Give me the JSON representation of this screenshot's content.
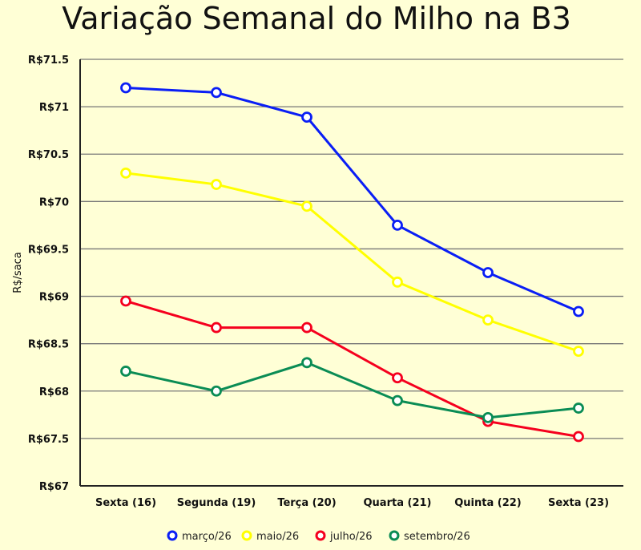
{
  "chart_data": {
    "type": "line",
    "title": "Variação Semanal do Milho na B3",
    "xlabel": "",
    "ylabel": "R$/saca",
    "categories": [
      "Sexta (16)",
      "Segunda (19)",
      "Terça (20)",
      "Quarta (21)",
      "Quinta (22)",
      "Sexta (23)"
    ],
    "ylim": [
      67,
      71.5
    ],
    "yticks": [
      67,
      67.5,
      68,
      68.5,
      69,
      69.5,
      70,
      70.5,
      71,
      71.5
    ],
    "ytick_labels": [
      "R$67",
      "R$67.5",
      "R$68",
      "R$68.5",
      "R$69",
      "R$69.5",
      "R$70",
      "R$70.5",
      "R$71",
      "R$71.5"
    ],
    "grid": "horizontal",
    "legend_position": "bottom",
    "series": [
      {
        "name": "março/26",
        "color": "#0a1ef5",
        "values": [
          71.2,
          71.15,
          70.89,
          69.75,
          69.25,
          68.84
        ]
      },
      {
        "name": "maio/26",
        "color": "#ffff00",
        "values": [
          70.3,
          70.18,
          69.95,
          69.15,
          68.75,
          68.42
        ]
      },
      {
        "name": "julho/26",
        "color": "#f5001e",
        "values": [
          68.95,
          68.67,
          68.67,
          68.14,
          67.68,
          67.52
        ]
      },
      {
        "name": "setembro/26",
        "color": "#0a8c55",
        "values": [
          68.21,
          68.0,
          68.3,
          67.9,
          67.72,
          67.82
        ]
      }
    ]
  }
}
